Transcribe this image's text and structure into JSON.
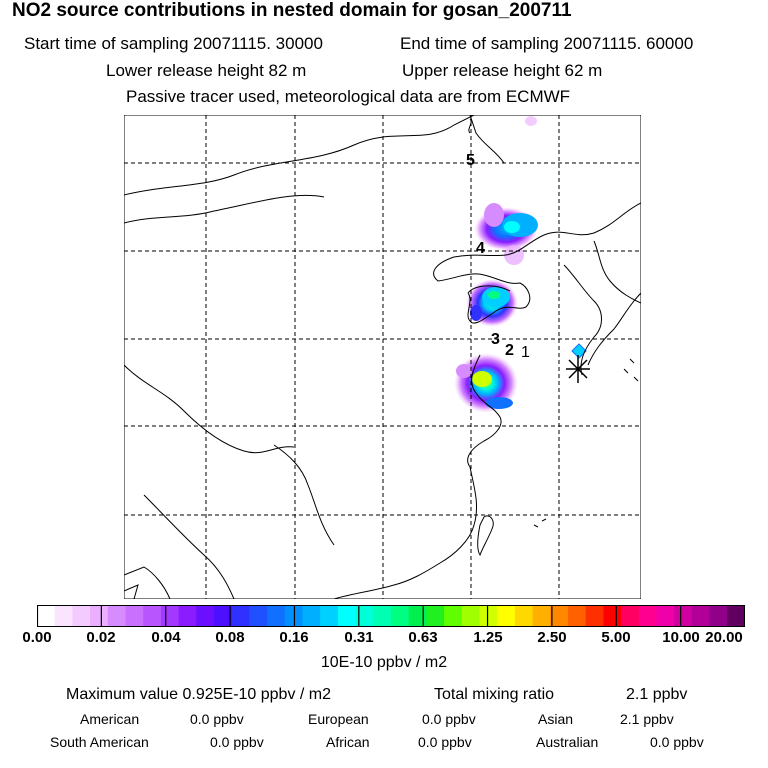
{
  "header": {
    "title": "NO2 source contributions in nested domain for gosan_200711",
    "start_time": "Start time of sampling 20071115. 30000",
    "end_time": "End time of sampling 20071115. 60000",
    "lower_release": "Lower release height   82 m",
    "upper_release": "Upper release height   62 m",
    "tracer_note": "Passive tracer used, meteorological data are from ECMWF"
  },
  "map": {
    "time_markers": [
      "5",
      "4",
      "3",
      "2",
      "1"
    ],
    "receptor_marker": "gosan",
    "colors": {
      "coast": "#000000",
      "grid": "#000000",
      "receptor": "#000000"
    }
  },
  "colorbar": {
    "tick_labels": [
      "0.00",
      "0.02",
      "0.04",
      "0.08",
      "0.16",
      "0.31",
      "0.63",
      "1.25",
      "2.50",
      "5.00",
      "10.00",
      "20.00"
    ],
    "colors": [
      "#ffffff",
      "#fbe4ff",
      "#f4cbff",
      "#eab0ff",
      "#d68cff",
      "#c970ff",
      "#b855ff",
      "#a338ff",
      "#8a1cff",
      "#6a10ff",
      "#4c10ff",
      "#3030ff",
      "#2050ff",
      "#1070ff",
      "#0090ff",
      "#00b0ff",
      "#00d0ff",
      "#00ffff",
      "#00ffd8",
      "#00ffb0",
      "#00ff80",
      "#00f050",
      "#20f020",
      "#60ff00",
      "#a0ff00",
      "#d0ff00",
      "#ffff00",
      "#ffd800",
      "#ffb000",
      "#ff8800",
      "#ff6000",
      "#ff3000",
      "#ff0000",
      "#ff0060",
      "#ff0090",
      "#f000a8",
      "#d000a0",
      "#b00098",
      "#900088",
      "#600060"
    ],
    "units": "10E-10 ppbv / m2"
  },
  "summary": {
    "max_value": "Maximum value  0.925E-10 ppbv / m2",
    "total_label": "Total mixing ratio",
    "total_value": "2.1 ppbv",
    "regions": [
      {
        "name": "American",
        "value": "0.0 ppbv"
      },
      {
        "name": "European",
        "value": "0.0 ppbv"
      },
      {
        "name": "Asian",
        "value": "2.1 ppbv"
      },
      {
        "name": "South American",
        "value": "0.0 ppbv"
      },
      {
        "name": "African",
        "value": "0.0 ppbv"
      },
      {
        "name": "Australian",
        "value": "0.0 ppbv"
      }
    ]
  }
}
